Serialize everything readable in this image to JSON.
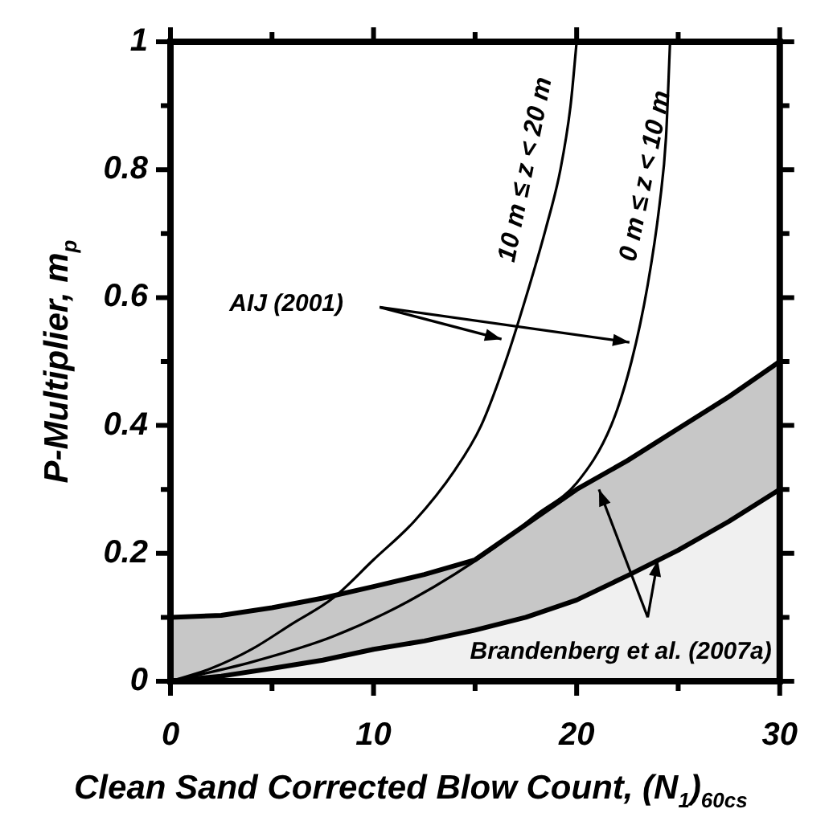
{
  "chart_data": {
    "type": "line",
    "xlabel": "Clean Sand Corrected Blow Count, (N$_{1}$)$_{60cs}$",
    "ylabel": "P-Multiplier, m$_{p}$",
    "xlim": [
      0,
      30
    ],
    "ylim": [
      0,
      1
    ],
    "xticks": [
      0,
      {
        "value": 5,
        "label": null
      },
      10,
      {
        "value": 15,
        "label": null
      },
      20,
      {
        "value": 25,
        "label": null
      },
      30
    ],
    "yticks": [
      0,
      {
        "value": 0.1,
        "label": null
      },
      0.2,
      {
        "value": 0.3,
        "label": null
      },
      0.4,
      {
        "value": 0.5,
        "label": null
      },
      0.6,
      {
        "value": 0.7,
        "label": null
      },
      0.8,
      {
        "value": 0.9,
        "label": null
      },
      1
    ],
    "grid": false,
    "legend": false,
    "stacked": true,
    "marker": "none",
    "series": [
      {
        "name": "10 m ≤ z < 20 m",
        "color": "#000000",
        "x": [
          0,
          2,
          4,
          6,
          8,
          10,
          12,
          14,
          15.3,
          16.5,
          17.5,
          18.5,
          19.2,
          19.7,
          20
        ],
        "values": [
          0,
          0.02,
          0.05,
          0.09,
          0.13,
          0.19,
          0.25,
          0.33,
          0.4,
          0.5,
          0.6,
          0.71,
          0.8,
          0.9,
          1
        ]
      },
      {
        "name": "0 m ≤ z < 10 m",
        "color": "#000000",
        "x": [
          0,
          4,
          8,
          12,
          16,
          18,
          20,
          21.7,
          22.7,
          23.5,
          24.1,
          24.4,
          24.6
        ],
        "values": [
          0,
          0.03,
          0.07,
          0.13,
          0.21,
          0.26,
          0.31,
          0.4,
          0.5,
          0.62,
          0.75,
          0.85,
          1
        ]
      },
      {
        "type": "area",
        "color": "#000000",
        "x": [
          0,
          2.5,
          5,
          7.5,
          10,
          12.5,
          15,
          17.5,
          20,
          22.5,
          25,
          27.5,
          30
        ],
        "values": [
          0,
          0.008,
          0.02,
          0.033,
          0.05,
          0.063,
          0.08,
          0.1,
          0.127,
          0.165,
          0.205,
          0.25,
          0.3
        ]
      },
      {
        "type": "area",
        "color": "#000000",
        "x": [
          0,
          2.5,
          5,
          7.5,
          10,
          12.5,
          15,
          17.5,
          20,
          22.5,
          25,
          27.5,
          30
        ],
        "values": [
          0.1,
          0.095,
          0.095,
          0.097,
          0.098,
          0.104,
          0.11,
          0.145,
          0.173,
          0.18,
          0.19,
          0.195,
          0.2
        ]
      }
    ],
    "annotations": [
      "AIJ (2001)",
      {
        "text": "Brandenberg et al. (2007a)",
        "x": 24,
        "y": 0.19
      }
    ]
  }
}
